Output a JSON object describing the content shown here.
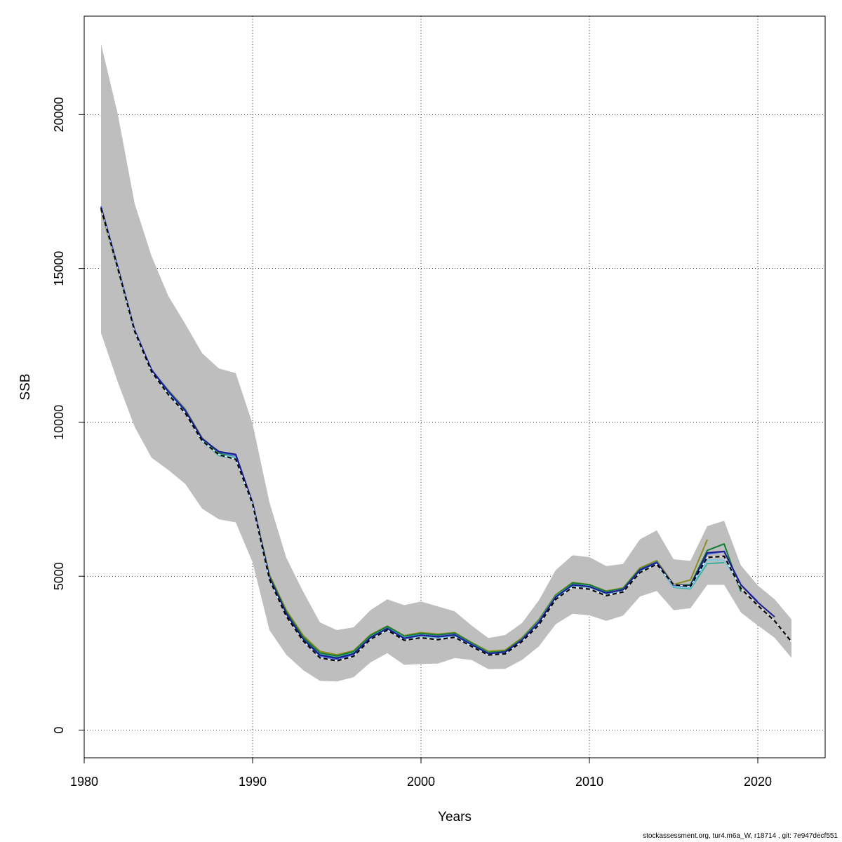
{
  "footer": "stockassessment.org, tur4.m6a_W, r18714 , git: 7e947decf551",
  "chart_data": {
    "type": "line",
    "xlabel": "Years",
    "ylabel": "SSB",
    "xlim": [
      1980,
      2024
    ],
    "ylim": [
      -900,
      23200
    ],
    "xticks": [
      1980,
      1990,
      2000,
      2010,
      2020
    ],
    "yticks": [
      0,
      5000,
      10000,
      15000,
      20000
    ],
    "grid": true,
    "band_color": "#bebebe",
    "band": {
      "x": [
        1981,
        1982,
        1983,
        1984,
        1985,
        1986,
        1987,
        1988,
        1989,
        1990,
        1991,
        1992,
        1993,
        1994,
        1995,
        1996,
        1997,
        1998,
        1999,
        2000,
        2001,
        2002,
        2003,
        2004,
        2005,
        2006,
        2007,
        2008,
        2009,
        2010,
        2011,
        2012,
        2013,
        2014,
        2015,
        2016,
        2017,
        2018,
        2019,
        2020,
        2021,
        2022
      ],
      "lower": [
        12900,
        11300,
        9850,
        8850,
        8450,
        8000,
        7200,
        6850,
        6750,
        5450,
        3250,
        2450,
        1950,
        1600,
        1580,
        1720,
        2200,
        2500,
        2120,
        2150,
        2160,
        2340,
        2280,
        1980,
        1990,
        2280,
        2720,
        3440,
        3780,
        3730,
        3550,
        3720,
        4340,
        4520,
        3900,
        3960,
        4720,
        4720,
        3820,
        3400,
        3000,
        2350
      ],
      "upper": [
        22300,
        20000,
        17100,
        15400,
        14100,
        13200,
        12250,
        11750,
        11600,
        9950,
        7400,
        5600,
        4500,
        3500,
        3250,
        3340,
        3900,
        4250,
        4060,
        4180,
        4020,
        3860,
        3400,
        2990,
        3090,
        3480,
        4220,
        5200,
        5680,
        5620,
        5330,
        5400,
        6200,
        6490,
        5550,
        5500,
        6630,
        6800,
        5350,
        4700,
        4250,
        3600
      ]
    },
    "series": [
      {
        "color": "#000000",
        "dashed": true,
        "start": 1981,
        "values": [
          16950,
          15000,
          12950,
          11650,
          10900,
          10300,
          9400,
          8950,
          8800,
          7350,
          4900,
          3700,
          2900,
          2350,
          2250,
          2400,
          2950,
          3250,
          2920,
          3000,
          2940,
          3020,
          2720,
          2440,
          2480,
          2880,
          3420,
          4250,
          4640,
          4580,
          4370,
          4490,
          5120,
          5390,
          4720,
          4670,
          5610,
          5650,
          4600,
          4050,
          3550,
          2870
        ]
      },
      {
        "color": "#1c1c8c",
        "start": 1981,
        "values": [
          16980,
          15020,
          12980,
          11700,
          11000,
          10380,
          9470,
          9050,
          8960,
          7390,
          4960,
          3790,
          2960,
          2440,
          2340,
          2480,
          3010,
          3300,
          2980,
          3080,
          3030,
          3090,
          2780,
          2490,
          2540,
          2930,
          3500,
          4320,
          4720,
          4660,
          4450,
          4560,
          5200,
          5440,
          4720,
          4690,
          5760,
          5810,
          4720,
          4150,
          3680
        ]
      },
      {
        "color": "#4f67d8",
        "start": 1981,
        "values": [
          17020,
          15050,
          13000,
          11720,
          11020,
          10400,
          9480,
          9040,
          8920,
          7380,
          4950,
          3760,
          2940,
          2410,
          2300,
          2460,
          3000,
          3310,
          2990,
          3090,
          3050,
          3110,
          2790,
          2480,
          2530,
          2940,
          3520,
          4330,
          4720,
          4670,
          4460,
          4570,
          5210,
          5460,
          4700,
          4680,
          5720,
          5800,
          4720,
          4180
        ]
      },
      {
        "color": "#7ec8e3",
        "start": 1981,
        "values": [
          16960,
          14980,
          12960,
          11660,
          10930,
          10320,
          9390,
          8960,
          8860,
          7340,
          4900,
          3730,
          2900,
          2400,
          2300,
          2440,
          2960,
          3240,
          2960,
          3050,
          3000,
          3060,
          2760,
          2450,
          2490,
          2890,
          3460,
          4300,
          4690,
          4640,
          4430,
          4540,
          5190,
          5410,
          4660,
          4620,
          5530,
          5520,
          4680
        ]
      },
      {
        "color": "#3ab0a0",
        "start": 1981,
        "values": [
          16980,
          15000,
          12970,
          11680,
          10980,
          10360,
          9420,
          8920,
          8820,
          7360,
          4920,
          3770,
          2960,
          2460,
          2360,
          2500,
          3030,
          3320,
          3020,
          3100,
          3050,
          3110,
          2800,
          2500,
          2540,
          2950,
          3540,
          4350,
          4740,
          4680,
          4460,
          4570,
          5170,
          5410,
          4640,
          4590,
          5410,
          5440
        ]
      },
      {
        "color": "#0e7a32",
        "start": 1981,
        "values": [
          16990,
          15020,
          12990,
          11710,
          11030,
          10410,
          9480,
          9010,
          8860,
          7390,
          5000,
          3840,
          3020,
          2510,
          2410,
          2550,
          3070,
          3370,
          3050,
          3140,
          3090,
          3150,
          2830,
          2520,
          2560,
          2970,
          3560,
          4370,
          4780,
          4720,
          4500,
          4600,
          5230,
          5470,
          4700,
          4720,
          5840,
          6050,
          4500
        ]
      },
      {
        "color": "#8d8d24",
        "start": 1981,
        "values": [
          16900,
          14950,
          12960,
          11700,
          11040,
          10430,
          9500,
          9000,
          8830,
          7370,
          5050,
          3900,
          3080,
          2560,
          2450,
          2580,
          3100,
          3380,
          3070,
          3170,
          3120,
          3170,
          2850,
          2560,
          2600,
          3000,
          3590,
          4400,
          4800,
          4730,
          4520,
          4620,
          5270,
          5510,
          4730,
          4880,
          6190
        ]
      }
    ]
  }
}
